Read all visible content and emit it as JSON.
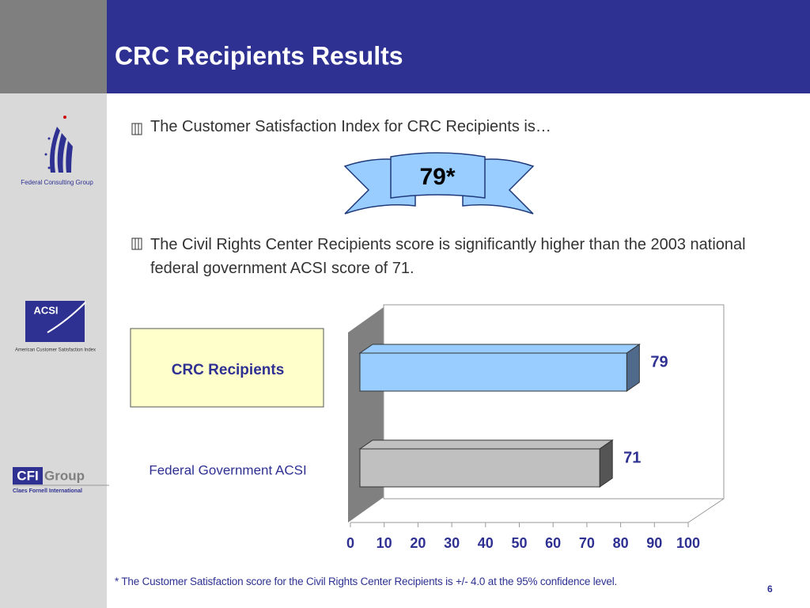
{
  "title": "CRC Recipients Results",
  "sidebar": {
    "fcg": "Federal Consulting Group",
    "acsi": "ACSI",
    "acsi_sub": "American Customer Satisfaction Index",
    "cfi": "CFI",
    "cfi_group": "Group",
    "cfi_sub": "Claes Fornell International"
  },
  "bullets": [
    "The Customer Satisfaction Index for CRC Recipients is…",
    "The Civil Rights Center Recipients score is significantly higher than the 2003 national federal government ACSI score of 71."
  ],
  "badge": "79*",
  "footnote": "* The Customer Satisfaction score for the Civil Rights Center Recipients is +/- 4.0 at the 95% confidence level.",
  "page_number": "6",
  "chart_data": {
    "type": "bar",
    "orientation": "horizontal",
    "categories": [
      "CRC Recipients",
      "Federal Government ACSI"
    ],
    "values": [
      79,
      71
    ],
    "colors": [
      "#99ccff",
      "#c0c0c0"
    ],
    "xlim": [
      0,
      100
    ],
    "xticks": [
      0,
      10,
      20,
      30,
      40,
      50,
      60,
      70,
      80,
      90,
      100
    ],
    "grid": false
  }
}
